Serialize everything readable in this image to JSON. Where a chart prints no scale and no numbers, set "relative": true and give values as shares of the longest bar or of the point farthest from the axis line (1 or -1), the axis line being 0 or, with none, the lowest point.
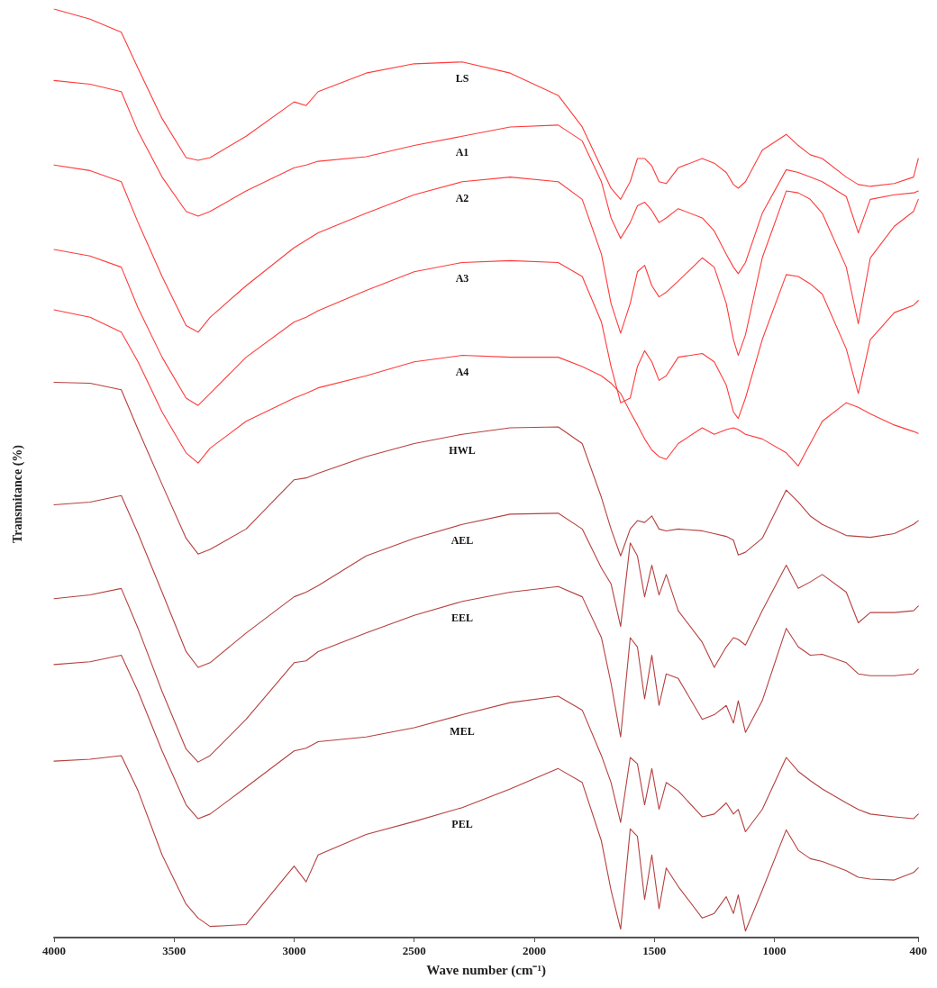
{
  "chart_data": {
    "type": "line",
    "relative": true,
    "xlabel": "Wave number (cm⁻¹)",
    "ylabel": "Transmitance (%)",
    "xlim": [
      4000,
      400
    ],
    "xticks": [
      4000,
      3500,
      3000,
      2500,
      2000,
      1500,
      1000,
      400
    ],
    "grid": false,
    "legend": false,
    "line_style": "solid",
    "x": [
      4000,
      3850,
      3720,
      3650,
      3550,
      3450,
      3400,
      3350,
      3200,
      3000,
      2950,
      2900,
      2700,
      2500,
      2300,
      2100,
      1900,
      1800,
      1720,
      1680,
      1640,
      1600,
      1570,
      1540,
      1510,
      1480,
      1450,
      1400,
      1300,
      1250,
      1200,
      1170,
      1150,
      1120,
      1050,
      950,
      900,
      850,
      800,
      700,
      650,
      600,
      500,
      420,
      400
    ],
    "series": [
      {
        "name": "LS",
        "color": "#ff3b3b",
        "values": [
          1.0,
          0.989,
          0.975,
          0.936,
          0.882,
          0.84,
          0.837,
          0.84,
          0.863,
          0.9,
          0.896,
          0.911,
          0.931,
          0.941,
          0.943,
          0.931,
          0.907,
          0.873,
          0.829,
          0.807,
          0.795,
          0.814,
          0.839,
          0.839,
          0.831,
          0.814,
          0.812,
          0.829,
          0.839,
          0.834,
          0.824,
          0.811,
          0.807,
          0.814,
          0.848,
          0.865,
          0.853,
          0.843,
          0.839,
          0.819,
          0.811,
          0.809,
          0.812,
          0.819,
          0.839
        ]
      },
      {
        "name": "A1",
        "color": "#ff3b3b",
        "values": [
          0.923,
          0.919,
          0.911,
          0.868,
          0.819,
          0.782,
          0.777,
          0.782,
          0.804,
          0.829,
          0.832,
          0.836,
          0.841,
          0.853,
          0.863,
          0.873,
          0.875,
          0.858,
          0.814,
          0.775,
          0.753,
          0.77,
          0.788,
          0.792,
          0.783,
          0.77,
          0.775,
          0.785,
          0.775,
          0.761,
          0.736,
          0.722,
          0.715,
          0.727,
          0.78,
          0.827,
          0.824,
          0.819,
          0.814,
          0.798,
          0.759,
          0.795,
          0.8,
          0.802,
          0.804
        ]
      },
      {
        "name": "A2",
        "color": "#ff3b3b",
        "values": [
          0.832,
          0.826,
          0.814,
          0.77,
          0.712,
          0.659,
          0.652,
          0.668,
          0.702,
          0.743,
          0.751,
          0.759,
          0.78,
          0.8,
          0.814,
          0.819,
          0.814,
          0.795,
          0.736,
          0.683,
          0.651,
          0.683,
          0.717,
          0.724,
          0.702,
          0.69,
          0.695,
          0.707,
          0.732,
          0.722,
          0.683,
          0.644,
          0.627,
          0.649,
          0.732,
          0.804,
          0.802,
          0.795,
          0.78,
          0.722,
          0.661,
          0.732,
          0.766,
          0.782,
          0.795
        ]
      },
      {
        "name": "A3",
        "color": "#ff3b3b",
        "values": [
          0.741,
          0.734,
          0.722,
          0.678,
          0.625,
          0.581,
          0.573,
          0.586,
          0.625,
          0.663,
          0.668,
          0.675,
          0.697,
          0.717,
          0.727,
          0.729,
          0.727,
          0.712,
          0.663,
          0.615,
          0.576,
          0.581,
          0.615,
          0.632,
          0.62,
          0.6,
          0.605,
          0.625,
          0.629,
          0.62,
          0.595,
          0.566,
          0.559,
          0.581,
          0.644,
          0.714,
          0.712,
          0.704,
          0.693,
          0.634,
          0.586,
          0.644,
          0.673,
          0.681,
          0.686
        ]
      },
      {
        "name": "A4",
        "color": "#ff3b3b",
        "values": [
          0.676,
          0.668,
          0.652,
          0.62,
          0.566,
          0.522,
          0.511,
          0.527,
          0.556,
          0.581,
          0.586,
          0.592,
          0.605,
          0.62,
          0.627,
          0.625,
          0.625,
          0.615,
          0.605,
          0.597,
          0.586,
          0.566,
          0.552,
          0.537,
          0.525,
          0.518,
          0.515,
          0.532,
          0.549,
          0.542,
          0.547,
          0.549,
          0.547,
          0.542,
          0.537,
          0.522,
          0.508,
          0.532,
          0.556,
          0.576,
          0.571,
          0.564,
          0.552,
          0.545,
          0.543
        ]
      },
      {
        "name": "HWL",
        "color": "#b5413f",
        "values": [
          0.598,
          0.597,
          0.59,
          0.547,
          0.488,
          0.43,
          0.413,
          0.418,
          0.44,
          0.493,
          0.495,
          0.5,
          0.518,
          0.532,
          0.542,
          0.549,
          0.55,
          0.532,
          0.474,
          0.44,
          0.411,
          0.44,
          0.449,
          0.447,
          0.454,
          0.44,
          0.438,
          0.44,
          0.438,
          0.435,
          0.432,
          0.428,
          0.412,
          0.415,
          0.43,
          0.482,
          0.469,
          0.454,
          0.445,
          0.433,
          0.432,
          0.431,
          0.435,
          0.445,
          0.449
        ]
      },
      {
        "name": "AEL",
        "color": "#b5413f",
        "values": [
          0.466,
          0.469,
          0.476,
          0.435,
          0.372,
          0.308,
          0.291,
          0.296,
          0.328,
          0.367,
          0.372,
          0.379,
          0.411,
          0.43,
          0.445,
          0.456,
          0.457,
          0.44,
          0.398,
          0.381,
          0.335,
          0.425,
          0.411,
          0.367,
          0.401,
          0.369,
          0.391,
          0.352,
          0.318,
          0.291,
          0.313,
          0.323,
          0.321,
          0.315,
          0.352,
          0.401,
          0.376,
          0.383,
          0.391,
          0.372,
          0.339,
          0.35,
          0.35,
          0.352,
          0.357
        ]
      },
      {
        "name": "EEL",
        "color": "#b5413f",
        "values": [
          0.365,
          0.369,
          0.376,
          0.333,
          0.265,
          0.203,
          0.189,
          0.196,
          0.235,
          0.296,
          0.298,
          0.308,
          0.328,
          0.347,
          0.362,
          0.372,
          0.378,
          0.367,
          0.323,
          0.274,
          0.216,
          0.323,
          0.313,
          0.257,
          0.304,
          0.25,
          0.284,
          0.279,
          0.235,
          0.24,
          0.25,
          0.231,
          0.255,
          0.221,
          0.255,
          0.333,
          0.313,
          0.304,
          0.305,
          0.296,
          0.284,
          0.282,
          0.282,
          0.284,
          0.289
        ]
      },
      {
        "name": "MEL",
        "color": "#b5413f",
        "values": [
          0.294,
          0.297,
          0.304,
          0.265,
          0.201,
          0.143,
          0.128,
          0.133,
          0.162,
          0.201,
          0.204,
          0.211,
          0.216,
          0.226,
          0.24,
          0.253,
          0.26,
          0.245,
          0.196,
          0.167,
          0.124,
          0.194,
          0.187,
          0.143,
          0.182,
          0.138,
          0.167,
          0.158,
          0.13,
          0.133,
          0.145,
          0.133,
          0.138,
          0.114,
          0.138,
          0.194,
          0.179,
          0.169,
          0.16,
          0.145,
          0.138,
          0.133,
          0.13,
          0.128,
          0.133
        ]
      },
      {
        "name": "PEL",
        "color": "#b5413f",
        "values": [
          0.19,
          0.192,
          0.196,
          0.158,
          0.089,
          0.036,
          0.021,
          0.012,
          0.014,
          0.077,
          0.06,
          0.089,
          0.111,
          0.125,
          0.14,
          0.16,
          0.182,
          0.167,
          0.104,
          0.051,
          0.009,
          0.117,
          0.109,
          0.041,
          0.089,
          0.031,
          0.075,
          0.055,
          0.021,
          0.026,
          0.044,
          0.026,
          0.046,
          0.007,
          0.051,
          0.116,
          0.094,
          0.085,
          0.082,
          0.072,
          0.065,
          0.063,
          0.062,
          0.07,
          0.075
        ]
      }
    ]
  }
}
